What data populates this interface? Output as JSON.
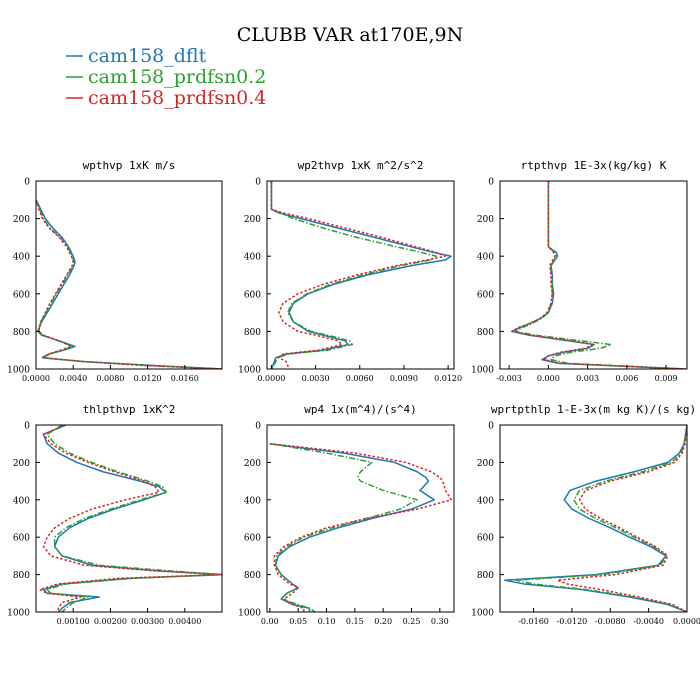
{
  "figure": {
    "title": "CLUBB VAR at170E,9N",
    "legend": [
      {
        "label": "cam158_dflt",
        "color": "#1f77b4",
        "dash": "solid"
      },
      {
        "label": "cam158_prdfsn0.2",
        "color": "#2ca02c",
        "dash": "dashdot"
      },
      {
        "label": "cam158_prdfsn0.4",
        "color": "#d62728",
        "dash": "dotted"
      }
    ]
  },
  "chart_data": [
    {
      "type": "line",
      "title": "wpthvp  1xK m/s",
      "xlim": [
        0.0,
        0.02
      ],
      "xticks": [
        0.0,
        0.004,
        0.008,
        0.012,
        0.016
      ],
      "xtick_labels": [
        "0.0000",
        "0.0040",
        "0.0080",
        "0.0120",
        "0.0160"
      ],
      "ylim": [
        0,
        1000
      ],
      "yticks": [
        0,
        200,
        400,
        600,
        800,
        1000
      ],
      "y_inverted": true,
      "y": [
        100,
        150,
        200,
        250,
        300,
        350,
        400,
        430,
        450,
        500,
        550,
        600,
        650,
        700,
        750,
        800,
        820,
        850,
        880,
        900,
        920,
        940,
        960,
        980,
        1000
      ],
      "series": [
        {
          "name": "cam158_dflt",
          "values": [
            0.0,
            0.0005,
            0.001,
            0.0018,
            0.0028,
            0.0035,
            0.004,
            0.0042,
            0.0041,
            0.0036,
            0.003,
            0.0024,
            0.0018,
            0.0012,
            0.0006,
            0.0002,
            0.0006,
            0.0025,
            0.0042,
            0.003,
            0.0015,
            0.0007,
            0.005,
            0.012,
            0.02
          ]
        },
        {
          "name": "cam158_prdfsn0.2",
          "values": [
            0.0,
            0.0004,
            0.0008,
            0.0015,
            0.0026,
            0.0034,
            0.0039,
            0.0041,
            0.004,
            0.0034,
            0.0028,
            0.0022,
            0.0016,
            0.0011,
            0.0005,
            0.0002,
            0.0007,
            0.0024,
            0.004,
            0.0028,
            0.0014,
            0.0006,
            0.005,
            0.012,
            0.02
          ]
        },
        {
          "name": "cam158_prdfsn0.4",
          "values": [
            0.0,
            0.0003,
            0.0007,
            0.0014,
            0.0025,
            0.0033,
            0.0038,
            0.004,
            0.0039,
            0.0033,
            0.0027,
            0.0021,
            0.0015,
            0.001,
            0.0005,
            0.0003,
            0.0008,
            0.0025,
            0.0038,
            0.0026,
            0.0014,
            0.0008,
            0.005,
            0.011,
            0.02
          ]
        }
      ]
    },
    {
      "type": "line",
      "title": "wp2thvp  1xK m^2/s^2",
      "xlim": [
        -0.0003,
        0.0124
      ],
      "xticks": [
        0.0,
        0.003,
        0.006,
        0.009,
        0.012
      ],
      "xtick_labels": [
        "0.0000",
        "0.0030",
        "0.0060",
        "0.0090",
        "0.0120"
      ],
      "ylim": [
        0,
        1000
      ],
      "yticks": [
        0,
        200,
        400,
        600,
        800,
        1000
      ],
      "y_inverted": true,
      "y": [
        0,
        100,
        150,
        170,
        200,
        250,
        300,
        350,
        380,
        400,
        420,
        450,
        500,
        550,
        600,
        650,
        700,
        750,
        800,
        820,
        850,
        870,
        900,
        920,
        940,
        960,
        1000
      ],
      "series": [
        {
          "name": "cam158_dflt",
          "values": [
            0.0,
            0.0,
            0.0,
            0.0005,
            0.002,
            0.0045,
            0.007,
            0.0095,
            0.011,
            0.0122,
            0.0118,
            0.0095,
            0.0065,
            0.0042,
            0.0025,
            0.0015,
            0.0012,
            0.0015,
            0.0025,
            0.0035,
            0.005,
            0.0052,
            0.0035,
            0.001,
            0.0003,
            0.0002,
            0.0
          ]
        },
        {
          "name": "cam158_prdfsn0.2",
          "values": [
            0.0,
            0.0,
            0.0,
            0.0006,
            0.0015,
            0.0035,
            0.0058,
            0.0085,
            0.0102,
            0.0112,
            0.0108,
            0.0088,
            0.0062,
            0.004,
            0.0024,
            0.0014,
            0.0011,
            0.0015,
            0.0027,
            0.0038,
            0.0053,
            0.0055,
            0.0038,
            0.0012,
            0.0004,
            0.0003,
            0.0
          ]
        },
        {
          "name": "cam158_prdfsn0.4",
          "values": [
            0.0,
            0.0,
            0.0,
            0.0008,
            0.0025,
            0.005,
            0.0075,
            0.0098,
            0.0112,
            0.0118,
            0.0106,
            0.0085,
            0.0058,
            0.0035,
            0.0018,
            0.0008,
            0.0005,
            0.0008,
            0.0018,
            0.003,
            0.0045,
            0.0048,
            0.0032,
            0.0008,
            0.0005,
            0.001,
            0.0012
          ]
        }
      ]
    },
    {
      "type": "line",
      "title": "rtpthvp  1E-3x(kg/kg) K",
      "xlim": [
        -0.0037,
        0.0106
      ],
      "xticks": [
        -0.003,
        0.0,
        0.003,
        0.006,
        0.009
      ],
      "xtick_labels": [
        "-0.003",
        "0.000",
        "0.003",
        "0.006",
        "0.009"
      ],
      "ylim": [
        0,
        1000
      ],
      "yticks": [
        0,
        200,
        400,
        600,
        800,
        1000
      ],
      "y_inverted": true,
      "y": [
        0,
        100,
        200,
        300,
        350,
        380,
        400,
        450,
        500,
        550,
        600,
        650,
        700,
        730,
        760,
        780,
        800,
        820,
        850,
        870,
        890,
        910,
        930,
        950,
        970,
        1000
      ],
      "series": [
        {
          "name": "cam158_dflt",
          "values": [
            0.0,
            0.0,
            0.0,
            0.0,
            0.0,
            0.0006,
            0.0007,
            0.0002,
            0.0003,
            0.0003,
            0.0004,
            0.0003,
            0.0,
            -0.0006,
            -0.0015,
            -0.0022,
            -0.0028,
            -0.0015,
            0.0015,
            0.0035,
            0.003,
            0.0012,
            0.0,
            -0.0005,
            0.0008,
            0.0105
          ]
        },
        {
          "name": "cam158_prdfsn0.2",
          "values": [
            0.0,
            0.0,
            0.0,
            0.0,
            0.0,
            0.0005,
            0.0006,
            0.0002,
            0.0002,
            0.0003,
            0.0003,
            0.0002,
            0.0,
            -0.0005,
            -0.0013,
            -0.002,
            -0.0025,
            -0.001,
            0.0025,
            0.0048,
            0.004,
            0.0018,
            0.0005,
            0.0002,
            0.0015,
            0.0105
          ]
        },
        {
          "name": "cam158_prdfsn0.4",
          "values": [
            0.0,
            0.0,
            0.0,
            0.0,
            0.0,
            0.0004,
            0.0005,
            0.0001,
            0.0002,
            0.0002,
            0.0003,
            0.0002,
            -0.0001,
            -0.0006,
            -0.0015,
            -0.0023,
            -0.0028,
            -0.0014,
            0.0018,
            0.0035,
            0.0028,
            0.001,
            0.0,
            -0.0003,
            0.001,
            0.0105
          ]
        }
      ]
    },
    {
      "type": "line",
      "title": "thlpthvp  1xK^2",
      "xlim": [
        0.0,
        0.005
      ],
      "xticks": [
        0.001,
        0.002,
        0.003,
        0.004
      ],
      "xtick_labels": [
        "0.00100",
        "0.00200",
        "0.00300",
        "0.00400"
      ],
      "ylim": [
        0,
        1000
      ],
      "yticks": [
        0,
        200,
        400,
        600,
        800,
        1000
      ],
      "y_inverted": true,
      "y": [
        0,
        50,
        100,
        150,
        200,
        250,
        300,
        330,
        360,
        400,
        450,
        500,
        550,
        600,
        650,
        700,
        750,
        780,
        800,
        820,
        850,
        880,
        900,
        920,
        950,
        980,
        1000
      ],
      "series": [
        {
          "name": "cam158_dflt",
          "values": [
            0.0008,
            0.0002,
            0.0003,
            0.0006,
            0.0011,
            0.0018,
            0.0028,
            0.0033,
            0.0035,
            0.0029,
            0.0021,
            0.0014,
            0.0009,
            0.0006,
            0.0005,
            0.0007,
            0.0015,
            0.0033,
            0.005,
            0.0025,
            0.0007,
            0.0002,
            0.0003,
            0.0017,
            0.0009,
            0.0007,
            0.0006
          ]
        },
        {
          "name": "cam158_prdfsn0.2",
          "values": [
            0.0007,
            0.0003,
            0.0005,
            0.0009,
            0.0015,
            0.0022,
            0.003,
            0.0034,
            0.0035,
            0.0028,
            0.002,
            0.0013,
            0.0008,
            0.0005,
            0.0005,
            0.0007,
            0.0017,
            0.0036,
            0.005,
            0.0026,
            0.0008,
            0.0003,
            0.0004,
            0.0014,
            0.001,
            0.0008,
            0.0007
          ]
        },
        {
          "name": "cam158_prdfsn0.4",
          "values": [
            0.0008,
            0.0002,
            0.0004,
            0.0008,
            0.0014,
            0.0021,
            0.0029,
            0.0032,
            0.0033,
            0.0024,
            0.0015,
            0.0009,
            0.0005,
            0.0003,
            0.0002,
            0.0004,
            0.0013,
            0.0032,
            0.005,
            0.0022,
            0.0006,
            0.0001,
            0.0003,
            0.0012,
            0.0007,
            0.0006,
            0.0006
          ]
        }
      ]
    },
    {
      "type": "line",
      "title": "wp4  1x(m^4)/(s^4)",
      "xlim": [
        -0.005,
        0.325
      ],
      "xticks": [
        0.0,
        0.05,
        0.1,
        0.15,
        0.2,
        0.25,
        0.3
      ],
      "xtick_labels": [
        "0.00",
        "0.05",
        "0.10",
        "0.15",
        "0.20",
        "0.25",
        "0.30"
      ],
      "ylim": [
        0,
        1000
      ],
      "yticks": [
        0,
        200,
        400,
        600,
        800,
        1000
      ],
      "y_inverted": true,
      "y": [
        100,
        120,
        150,
        200,
        250,
        280,
        300,
        350,
        400,
        450,
        500,
        550,
        600,
        650,
        700,
        750,
        800,
        850,
        870,
        900,
        930,
        960,
        980,
        1000
      ],
      "series": [
        {
          "name": "cam158_dflt",
          "values": [
            0.0,
            0.05,
            0.13,
            0.22,
            0.26,
            0.275,
            0.28,
            0.265,
            0.29,
            0.25,
            0.18,
            0.12,
            0.07,
            0.035,
            0.015,
            0.01,
            0.02,
            0.04,
            0.05,
            0.03,
            0.02,
            0.04,
            0.07,
            0.07
          ]
        },
        {
          "name": "cam158_prdfsn0.2",
          "values": [
            0.0,
            0.04,
            0.1,
            0.18,
            0.16,
            0.155,
            0.16,
            0.2,
            0.26,
            0.23,
            0.17,
            0.11,
            0.06,
            0.03,
            0.012,
            0.01,
            0.02,
            0.04,
            0.05,
            0.03,
            0.02,
            0.05,
            0.07,
            0.08
          ]
        },
        {
          "name": "cam158_prdfsn0.4",
          "values": [
            0.0,
            0.06,
            0.15,
            0.24,
            0.285,
            0.3,
            0.305,
            0.31,
            0.32,
            0.26,
            0.17,
            0.1,
            0.055,
            0.025,
            0.008,
            0.008,
            0.015,
            0.035,
            0.05,
            0.04,
            0.025,
            0.04,
            0.06,
            0.06
          ]
        }
      ]
    },
    {
      "type": "line",
      "title": "wprtpthlp  1-E-3x(m kg K)/(s kg)",
      "xlim": [
        -0.0195,
        0.0
      ],
      "xticks": [
        -0.016,
        -0.012,
        -0.008,
        -0.004,
        0.0
      ],
      "xtick_labels": [
        "-0.0160",
        "-0.0120",
        "-0.0080",
        "-0.0040",
        "0.0000"
      ],
      "ylim": [
        0,
        1000
      ],
      "yticks": [
        0,
        200,
        400,
        600,
        800,
        1000
      ],
      "y_inverted": true,
      "y": [
        0,
        100,
        150,
        200,
        250,
        300,
        350,
        400,
        450,
        500,
        550,
        600,
        650,
        700,
        750,
        800,
        830,
        850,
        880,
        920,
        960,
        1000
      ],
      "series": [
        {
          "name": "cam158_dflt",
          "values": [
            0.0,
            -0.0003,
            -0.0008,
            -0.002,
            -0.0055,
            -0.0095,
            -0.0122,
            -0.0128,
            -0.012,
            -0.0102,
            -0.008,
            -0.006,
            -0.0038,
            -0.0022,
            -0.003,
            -0.0095,
            -0.019,
            -0.017,
            -0.011,
            -0.006,
            -0.002,
            0.0
          ]
        },
        {
          "name": "cam158_prdfsn0.2",
          "values": [
            0.0,
            -0.0003,
            -0.0006,
            -0.0016,
            -0.0046,
            -0.0085,
            -0.0112,
            -0.0118,
            -0.0112,
            -0.0095,
            -0.0074,
            -0.0055,
            -0.0035,
            -0.0021,
            -0.0028,
            -0.0088,
            -0.0178,
            -0.016,
            -0.0104,
            -0.0056,
            -0.0018,
            0.0
          ]
        },
        {
          "name": "cam158_prdfsn0.4",
          "values": [
            0.0,
            -0.0002,
            -0.0005,
            -0.0013,
            -0.004,
            -0.008,
            -0.0106,
            -0.0112,
            -0.0106,
            -0.009,
            -0.007,
            -0.0052,
            -0.0033,
            -0.002,
            -0.0025,
            -0.0075,
            -0.0135,
            -0.0125,
            -0.009,
            -0.005,
            -0.0015,
            0.0
          ]
        }
      ]
    }
  ]
}
